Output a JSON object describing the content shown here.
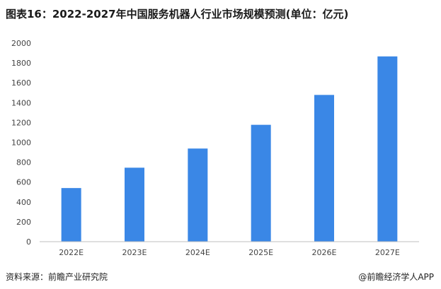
{
  "chart_data": {
    "type": "bar",
    "title": "图表16：2022-2027年中国服务机器人行业市场规模预测(单位：亿元)",
    "categories": [
      "2022E",
      "2023E",
      "2024E",
      "2025E",
      "2026E",
      "2027E"
    ],
    "values": [
      540,
      745,
      938,
      1177,
      1478,
      1866
    ],
    "ylim": [
      0,
      2000
    ],
    "yticks": [
      0,
      200,
      400,
      600,
      800,
      1000,
      1200,
      1400,
      1600,
      1800,
      2000
    ],
    "bar_color": "#3a87e6",
    "grid": false,
    "legend": "none"
  },
  "footer": {
    "source": "资料来源：前瞻产业研究院",
    "brand": "@前瞻经济学人APP"
  }
}
